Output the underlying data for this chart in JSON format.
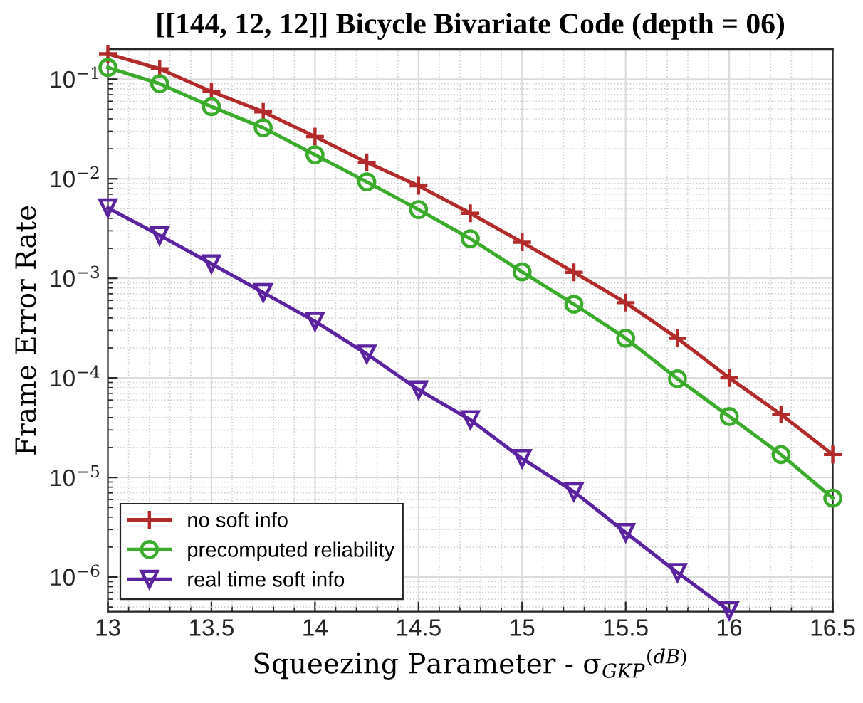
{
  "chart_data": {
    "type": "line",
    "title": "[[144, 12, 12]] Bicycle Bivariate Code (depth = 06)",
    "xlabel": "Squeezing Parameter - σ$_{GKP}$$^{(dB)}$",
    "ylabel": "Frame Error Rate",
    "x": [
      13,
      13.25,
      13.5,
      13.75,
      14,
      14.25,
      14.5,
      14.75,
      15,
      15.25,
      15.5,
      15.75,
      16,
      16.25,
      16.5
    ],
    "series": [
      {
        "name": "no soft info",
        "color": "#b22a2a",
        "marker": "cross",
        "values": [
          0.18,
          0.127,
          0.075,
          0.047,
          0.0265,
          0.0146,
          0.0085,
          0.0045,
          0.0023,
          0.00115,
          0.00057,
          0.00025,
          0.0001,
          4.3e-05,
          1.7e-05
        ]
      },
      {
        "name": "precomputed reliability",
        "color": "#3aab2a",
        "marker": "circle",
        "values": [
          0.131,
          0.09,
          0.053,
          0.0325,
          0.0174,
          0.0093,
          0.0049,
          0.0025,
          0.00116,
          0.00055,
          0.00025,
          9.8e-05,
          4.1e-05,
          1.7e-05,
          6.2e-06
        ]
      },
      {
        "name": "real time soft info",
        "color": "#5b23a0",
        "marker": "triangle",
        "values": [
          0.0051,
          0.0027,
          0.0014,
          0.00072,
          0.00037,
          0.000174,
          7.6e-05,
          3.8e-05,
          1.55e-05,
          7.2e-06,
          2.8e-06,
          1.11e-06,
          4.6e-07,
          null,
          null
        ]
      }
    ],
    "log": "y",
    "xlim": [
      13,
      16.5
    ],
    "ylim": [
      4.5e-07,
      0.2
    ],
    "xticks": [
      13,
      13.5,
      14,
      14.5,
      15,
      15.5,
      16,
      16.5
    ],
    "yticks": [
      {
        "value": 1e-06,
        "label": "10$^{−6}$"
      },
      {
        "value": 1e-05,
        "label": "10$^{−5}$"
      },
      {
        "value": 0.0001,
        "label": "10$^{−4}$"
      },
      {
        "value": 0.001,
        "label": "10$^{−3}$"
      },
      {
        "value": 0.01,
        "label": "10$^{−2}$"
      },
      {
        "value": 0.1,
        "label": "10$^{−1}$"
      }
    ],
    "grid": true,
    "legend": "bottom left",
    "line_style": "solid"
  }
}
